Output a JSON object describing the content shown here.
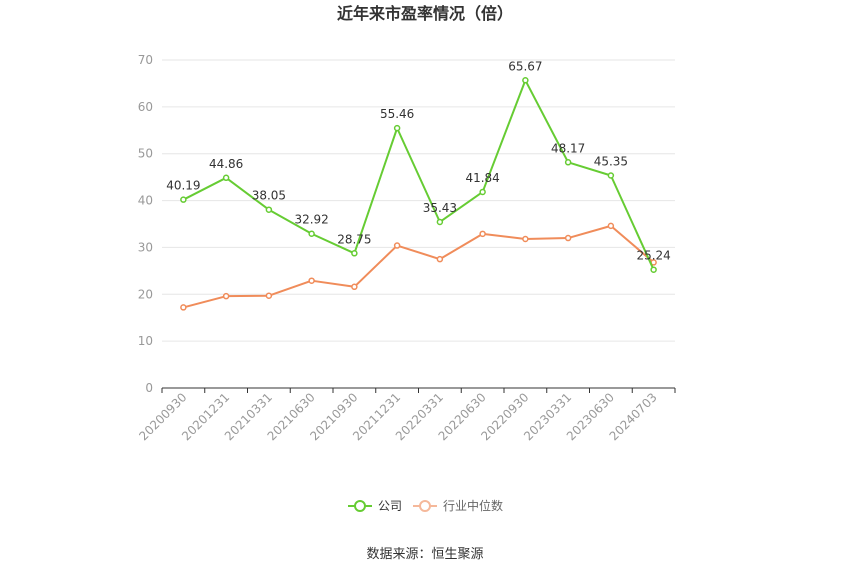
{
  "chart_data": {
    "type": "line",
    "title": "近年来市盈率情况（倍）",
    "x": [
      "20200930",
      "20201231",
      "20210331",
      "20210630",
      "20210930",
      "20211231",
      "20220331",
      "20220630",
      "20220930",
      "20230331",
      "20230630",
      "20240703"
    ],
    "ylim": [
      0,
      70
    ],
    "yticks": [
      0,
      10,
      20,
      30,
      40,
      50,
      60,
      70
    ],
    "grid": true,
    "legend_position": "bottom",
    "series": [
      {
        "name": "公司",
        "color": "#66cc33",
        "values": [
          40.19,
          44.86,
          38.05,
          32.92,
          28.75,
          55.46,
          35.43,
          41.84,
          65.67,
          48.17,
          45.35,
          25.24
        ],
        "labels": [
          "40.19",
          "44.86",
          "38.05",
          "32.92",
          "28.75",
          "55.46",
          "35.43",
          "41.84",
          "65.67",
          "48.17",
          "45.35",
          "25.24"
        ]
      },
      {
        "name": "行业中位数",
        "color": "#f08c5a",
        "values": [
          17.2,
          19.6,
          19.7,
          22.9,
          21.6,
          30.4,
          27.5,
          32.9,
          31.8,
          32.0,
          34.6,
          26.8
        ]
      }
    ]
  },
  "source": "数据来源：恒生聚源"
}
